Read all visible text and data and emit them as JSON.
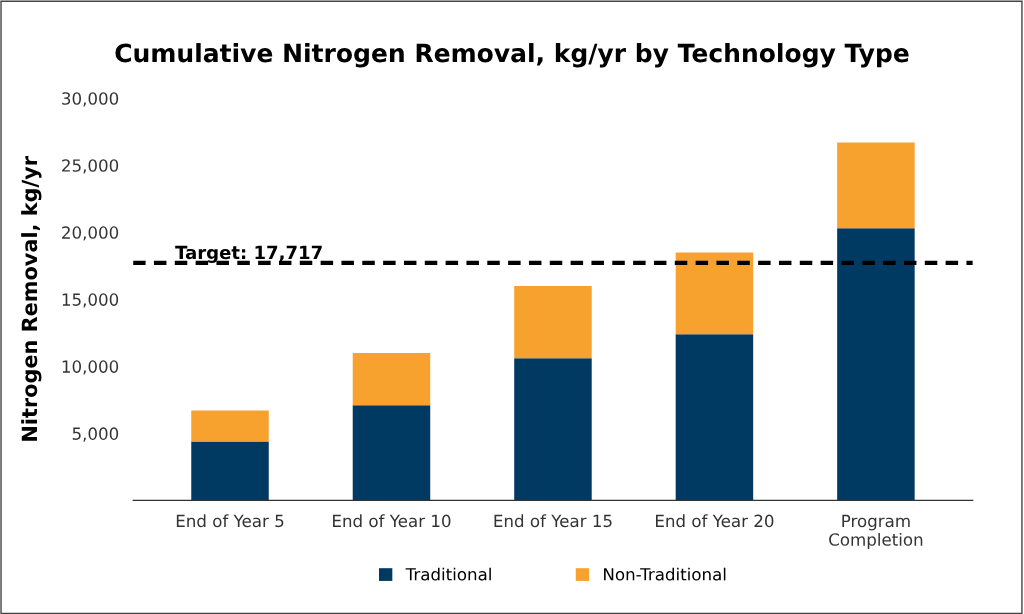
{
  "chart_data": {
    "type": "bar",
    "title": "Cumulative Nitrogen Removal, kg/yr by Technology Type",
    "ylabel": "Nitrogen Removal, kg/yr",
    "categories": [
      "End of Year 5",
      "End of Year 10",
      "End of Year 15",
      "End of Year 20",
      "Program\nCompletion"
    ],
    "stacked": true,
    "series": [
      {
        "name": "Traditional",
        "color": "#003a63",
        "values": [
          4400,
          7100,
          10600,
          12400,
          20300
        ]
      },
      {
        "name": "Non-Traditional",
        "color": "#f7a12f",
        "values": [
          2300,
          3900,
          5400,
          6100,
          6400
        ]
      }
    ],
    "ylim": [
      0,
      30000
    ],
    "yticks": [
      {
        "value": 5000,
        "label": "5,000"
      },
      {
        "value": 10000,
        "label": "10,000"
      },
      {
        "value": 15000,
        "label": "15,000"
      },
      {
        "value": 20000,
        "label": "20,000"
      },
      {
        "value": 25000,
        "label": "25,000"
      },
      {
        "value": 30000,
        "label": "30,000"
      }
    ],
    "ref_lines": [
      {
        "axis": "y",
        "value": 17717,
        "label": "Target: 17,717",
        "color": "#000000",
        "line_style": "dashed"
      }
    ],
    "grid": false,
    "legend": "bottom"
  }
}
